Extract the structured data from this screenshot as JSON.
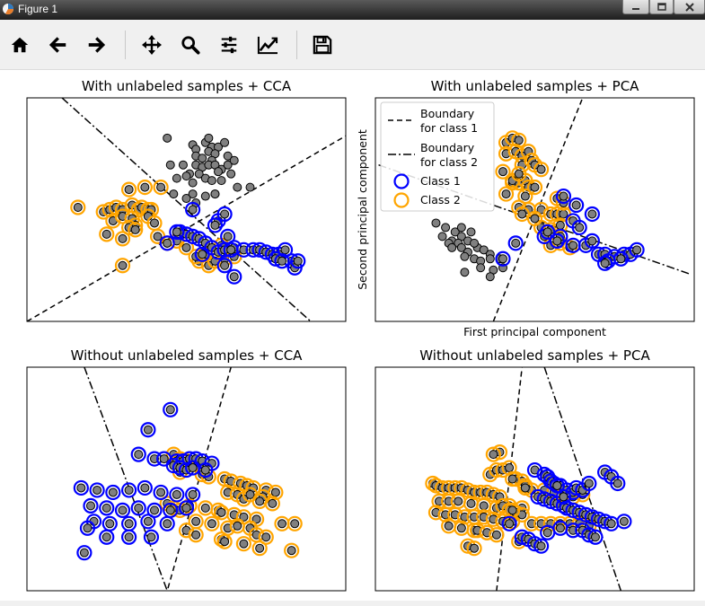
{
  "window": {
    "title": "Figure 1",
    "controls": [
      "minimize",
      "maximize",
      "close"
    ]
  },
  "toolbar": {
    "buttons": [
      {
        "name": "home",
        "icon": "home-icon"
      },
      {
        "name": "back",
        "icon": "arrow-left-icon"
      },
      {
        "name": "forward",
        "icon": "arrow-right-icon"
      },
      {
        "name": "pan",
        "icon": "move-icon"
      },
      {
        "name": "zoom",
        "icon": "magnifier-icon"
      },
      {
        "name": "configure-subplots",
        "icon": "sliders-icon"
      },
      {
        "name": "edit-axis",
        "icon": "line-chart-icon"
      },
      {
        "name": "save",
        "icon": "floppy-disk-icon"
      }
    ]
  },
  "colors": {
    "class1": "#0000ff",
    "class2": "#ffa500",
    "unlabeled_fill": "#808080",
    "marker_fill": "#808080",
    "boundary": "#000000"
  },
  "legend": {
    "entries": [
      {
        "label_line1": "Boundary",
        "label_line2": "for class 1",
        "style": "dashed"
      },
      {
        "label_line1": "Boundary",
        "label_line2": "for class 2",
        "style": "dashdot"
      },
      {
        "label_line1": "Class 1",
        "style": "circle-blue"
      },
      {
        "label_line1": "Class 2",
        "style": "circle-orange"
      }
    ]
  },
  "chart_data": [
    {
      "type": "scatter",
      "title": "With unlabeled samples + CCA",
      "xlabel": "",
      "ylabel": "",
      "xlim": [
        0,
        100
      ],
      "ylim": [
        0,
        100
      ],
      "boundaries": [
        {
          "style": "dashed",
          "points": [
            [
              0,
              0
            ],
            [
              100,
              83
            ]
          ]
        },
        {
          "style": "dashdot",
          "points": [
            [
              11,
              100
            ],
            [
              89,
              0
            ]
          ]
        }
      ],
      "series": [
        {
          "role": "unlabeled",
          "x": [
            44,
            52,
            53,
            56,
            58,
            57,
            60,
            62,
            53,
            55,
            57,
            59,
            63,
            58,
            45,
            49,
            53,
            55,
            57,
            59,
            61,
            63,
            65,
            51,
            54,
            56,
            60,
            64,
            47,
            50,
            52,
            58,
            61,
            46,
            52,
            56,
            59,
            66,
            50,
            53,
            59,
            70
          ],
          "y": [
            82,
            79,
            77,
            80,
            78,
            82,
            78,
            80,
            74,
            73,
            76,
            75,
            74,
            72,
            70,
            70,
            70,
            69,
            70,
            70,
            68,
            70,
            72,
            66,
            66,
            64,
            67,
            66,
            64,
            65,
            62,
            63,
            63,
            57,
            57,
            56,
            57,
            60,
            55,
            53,
            57,
            60
          ]
        },
        {
          "role": "class2",
          "x": [
            16,
            24,
            26,
            28,
            30,
            33,
            35,
            36,
            38,
            39,
            32,
            27,
            30,
            33,
            38,
            34,
            40,
            32,
            25,
            30,
            41,
            47,
            50,
            54,
            57,
            59,
            62,
            37,
            42,
            34,
            30,
            44,
            53,
            56,
            61,
            65
          ],
          "y": [
            51,
            49,
            50,
            51,
            50,
            52,
            50,
            51,
            50,
            50,
            59,
            45,
            47,
            46,
            47,
            43,
            44,
            42,
            39,
            37,
            38,
            36,
            33,
            27,
            25,
            27,
            28,
            60,
            60,
            41,
            25,
            35,
            29,
            30,
            34,
            29
          ]
        },
        {
          "role": "class1",
          "x": [
            48,
            50,
            52,
            54,
            56,
            58,
            55,
            60,
            62,
            65,
            68,
            71,
            73,
            75,
            77,
            79,
            81,
            83,
            84,
            85,
            78,
            80,
            52,
            47,
            60,
            62,
            59,
            63,
            64,
            65,
            44,
            62
          ],
          "y": [
            40,
            39,
            38,
            37,
            35,
            33,
            30,
            31,
            32,
            33,
            32,
            32,
            32,
            31,
            30,
            30,
            32,
            27,
            24,
            27,
            28,
            27,
            50,
            40,
            45,
            48,
            43,
            38,
            32,
            20,
            35,
            25
          ]
        }
      ]
    },
    {
      "type": "scatter",
      "title": "With unlabeled samples + PCA",
      "xlabel": "First principal component",
      "ylabel": "Second principal component",
      "xlim": [
        0,
        100
      ],
      "ylim": [
        0,
        100
      ],
      "boundaries": [
        {
          "style": "dashed",
          "points": [
            [
              37,
              0
            ],
            [
              65,
              100
            ]
          ]
        },
        {
          "style": "dashdot",
          "points": [
            [
              1,
              70
            ],
            [
              99,
              21
            ]
          ]
        }
      ],
      "series": [
        {
          "role": "unlabeled",
          "x": [
            19,
            22,
            25,
            21,
            24,
            27,
            30,
            23,
            26,
            29,
            24,
            27,
            29,
            32,
            34,
            28,
            31,
            36,
            33,
            36,
            39,
            28,
            33,
            37,
            40,
            36,
            31,
            27
          ],
          "y": [
            44,
            42,
            40,
            38,
            36,
            38,
            40,
            35,
            35,
            36,
            33,
            33,
            31,
            33,
            32,
            29,
            28,
            30,
            27,
            28,
            28,
            22,
            24,
            23,
            24,
            20,
            35,
            42
          ]
        },
        {
          "role": "class2",
          "x": [
            41,
            43,
            45,
            41,
            44,
            46,
            48,
            46,
            49,
            50,
            52,
            43,
            45,
            47,
            48,
            50,
            41,
            47,
            45,
            48,
            52,
            55,
            57,
            59,
            52,
            55,
            58,
            55,
            58,
            61,
            40,
            43,
            45,
            57,
            59,
            46,
            50
          ],
          "y": [
            80,
            82,
            81,
            75,
            76,
            74,
            76,
            70,
            72,
            70,
            68,
            62,
            62,
            63,
            60,
            60,
            57,
            56,
            51,
            50,
            50,
            48,
            48,
            48,
            42,
            41,
            43,
            34,
            35,
            33,
            67,
            63,
            66,
            55,
            53,
            48,
            46
          ]
        },
        {
          "role": "class1",
          "x": [
            53,
            58,
            62,
            66,
            68,
            70,
            72,
            75,
            78,
            80,
            68,
            73,
            77,
            82,
            62,
            64,
            63,
            59,
            44,
            40,
            72,
            54,
            57
          ],
          "y": [
            38,
            38,
            34,
            34,
            36,
            30,
            30,
            29,
            30,
            30,
            48,
            27,
            28,
            32,
            45,
            42,
            52,
            56,
            35,
            28,
            26,
            40,
            36
          ]
        }
      ]
    },
    {
      "type": "scatter",
      "title": "Without unlabeled samples + CCA",
      "xlabel": "",
      "ylabel": "",
      "xlim": [
        0,
        100
      ],
      "ylim": [
        0,
        100
      ],
      "boundaries": [
        {
          "style": "dashdot",
          "points": [
            [
              18,
              100
            ],
            [
              44,
              0
            ]
          ]
        },
        {
          "style": "dashed",
          "points": [
            [
              64,
              100
            ],
            [
              44,
              0
            ]
          ]
        }
      ],
      "series": [
        {
          "role": "class1",
          "x": [
            45,
            38,
            35,
            40,
            43,
            47,
            49,
            51,
            53,
            55,
            58,
            46,
            48,
            50,
            52,
            56,
            17,
            22,
            27,
            32,
            37,
            42,
            47,
            52,
            20,
            25,
            30,
            35,
            40,
            45,
            50,
            21,
            26,
            32,
            38,
            44,
            19,
            25,
            32,
            39,
            18
          ],
          "y": [
            81,
            72,
            61,
            59,
            59,
            58,
            58,
            59,
            59,
            58,
            57,
            56,
            55,
            54,
            55,
            54,
            46,
            45,
            44,
            45,
            46,
            44,
            43,
            43,
            38,
            37,
            36,
            37,
            36,
            36,
            37,
            31,
            30,
            30,
            31,
            30,
            28,
            24,
            24,
            24,
            17
          ]
        },
        {
          "role": "class2",
          "x": [
            46,
            48,
            50,
            52,
            54,
            48,
            55,
            57,
            62,
            64,
            67,
            69,
            71,
            75,
            78,
            63,
            66,
            68,
            70,
            74,
            73,
            77,
            44,
            46,
            48,
            51,
            56,
            60,
            61,
            65,
            68,
            72,
            80,
            84,
            53,
            58,
            63,
            66,
            70,
            72,
            75,
            50,
            53,
            61,
            62,
            68,
            73,
            83
          ],
          "y": [
            61,
            59,
            58,
            57,
            56,
            53,
            52,
            51,
            50,
            49,
            48,
            47,
            46,
            45,
            44,
            44,
            43,
            41,
            43,
            42,
            40,
            39,
            39,
            37,
            36,
            38,
            37,
            36,
            35,
            34,
            33,
            32,
            30,
            30,
            31,
            30,
            28,
            29,
            28,
            25,
            24,
            27,
            25,
            23,
            22,
            21,
            19,
            18
          ]
        }
      ]
    },
    {
      "type": "scatter",
      "title": "Without unlabeled samples + PCA",
      "xlabel": "",
      "ylabel": "",
      "xlim": [
        0,
        100
      ],
      "ylim": [
        0,
        100
      ],
      "boundaries": [
        {
          "style": "dashed",
          "points": [
            [
              38,
              0
            ],
            [
              46,
              100
            ]
          ]
        },
        {
          "style": "dashdot",
          "points": [
            [
              53,
              100
            ],
            [
              77,
              0
            ]
          ]
        }
      ],
      "series": [
        {
          "role": "class2",
          "x": [
            39,
            37,
            36,
            38,
            40,
            42,
            44,
            46,
            47,
            49,
            18,
            19,
            21,
            23,
            25,
            27,
            29,
            31,
            33,
            35,
            37,
            39,
            20,
            23,
            26,
            30,
            34,
            38,
            42,
            46,
            19,
            22,
            25,
            28,
            31,
            34,
            37,
            40,
            43,
            49,
            52,
            55,
            58,
            61,
            64,
            67,
            23,
            27,
            31,
            35,
            45,
            43,
            47,
            53,
            56,
            59,
            62,
            65,
            40,
            42,
            44,
            46,
            32,
            35,
            38,
            29,
            31,
            43
          ],
          "y": [
            62,
            61,
            52,
            54,
            54,
            55,
            50,
            49,
            47,
            45,
            48,
            47,
            46,
            46,
            46,
            46,
            45,
            44,
            44,
            44,
            43,
            42,
            40,
            40,
            40,
            39,
            38,
            37,
            38,
            37,
            35,
            34,
            34,
            33,
            33,
            33,
            32,
            31,
            31,
            30,
            30,
            30,
            30,
            30,
            30,
            29,
            29,
            28,
            27,
            26,
            22,
            50,
            46,
            45,
            44,
            43,
            42,
            43,
            38,
            36,
            35,
            34,
            27,
            26,
            25,
            20,
            19,
            36
          ]
        },
        {
          "role": "class1",
          "x": [
            50,
            53,
            54,
            55,
            56,
            58,
            60,
            62,
            63,
            65,
            67,
            72,
            74,
            76,
            51,
            53,
            55,
            57,
            59,
            60,
            62,
            64,
            66,
            68,
            70,
            72,
            74,
            46,
            48,
            50,
            52,
            54,
            58,
            62,
            65,
            67,
            69,
            42,
            57,
            59,
            78
          ],
          "y": [
            54,
            52,
            51,
            49,
            48,
            47,
            45,
            44,
            46,
            45,
            48,
            53,
            51,
            48,
            42,
            41,
            40,
            39,
            38,
            37,
            36,
            35,
            34,
            33,
            32,
            31,
            30,
            24,
            23,
            21,
            20,
            26,
            28,
            27,
            27,
            25,
            24,
            30,
            47,
            42,
            31
          ]
        }
      ]
    }
  ]
}
